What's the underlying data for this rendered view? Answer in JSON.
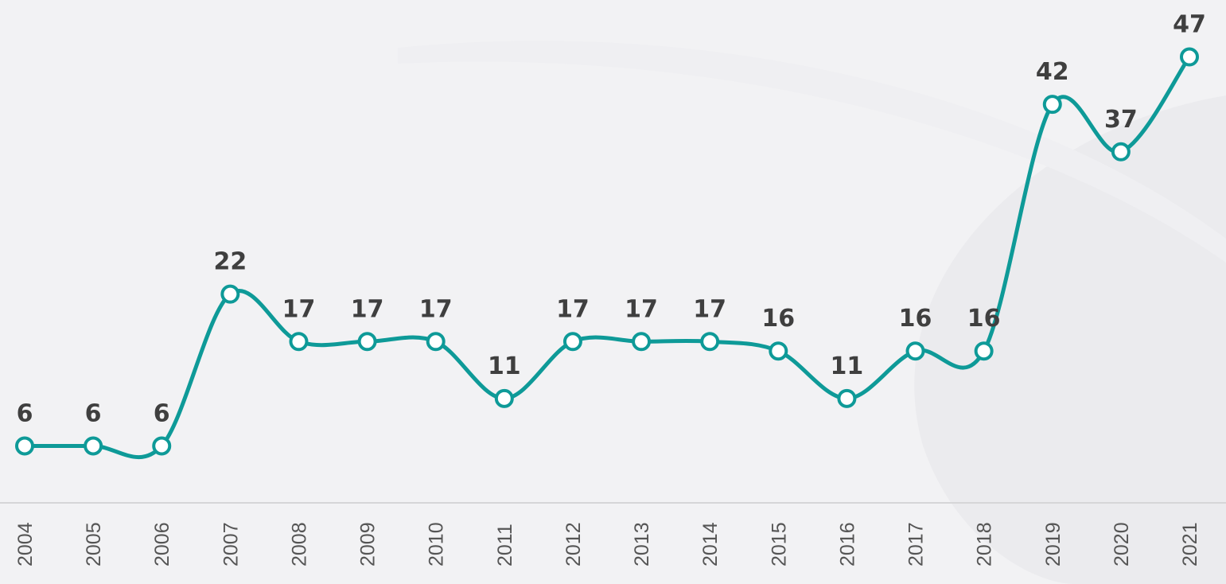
{
  "chart_data": {
    "type": "line",
    "categories": [
      "2004",
      "2005",
      "2006",
      "2007",
      "2008",
      "2009",
      "2010",
      "2011",
      "2012",
      "2013",
      "2014",
      "2015",
      "2016",
      "2017",
      "2018",
      "2019",
      "2020",
      "2021"
    ],
    "series": [
      {
        "color": "#0e9a98",
        "values": [
          6,
          6,
          6,
          22,
          17,
          17,
          17,
          11,
          17,
          17,
          17,
          16,
          11,
          16,
          16,
          42,
          37,
          47
        ]
      }
    ],
    "ylim": [
      0,
      53
    ],
    "smooth": true
  }
}
